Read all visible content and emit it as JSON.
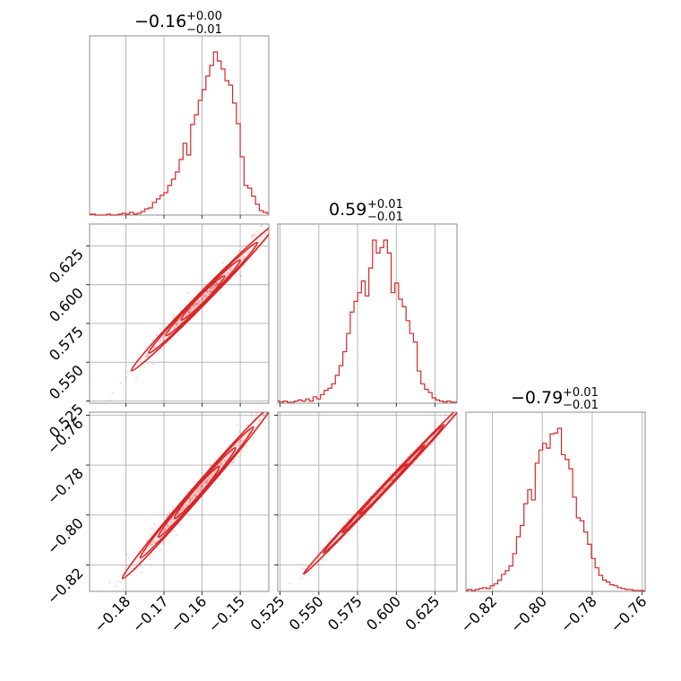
{
  "chart_data": {
    "type": "corner",
    "color": "#d62728",
    "parameters": [
      {
        "title": "−0.16",
        "plus": "+0.00",
        "minus": "−0.01",
        "lim": [
          -0.1895,
          -0.1425
        ],
        "ticks": [
          -0.18,
          -0.17,
          -0.16,
          -0.15
        ],
        "tick_labels": [
          "−0.18",
          "−0.17",
          "−0.16",
          "−0.15"
        ]
      },
      {
        "title": "0.59",
        "plus": "+0.01",
        "minus": "−0.01",
        "lim": [
          0.5235,
          0.6392
        ],
        "ticks": [
          0.525,
          0.55,
          0.575,
          0.6,
          0.625
        ],
        "tick_labels": [
          "0.525",
          "0.550",
          "0.575",
          "0.600",
          "0.625"
        ]
      },
      {
        "title": "−0.79",
        "plus": "+0.01",
        "minus": "−0.01",
        "lim": [
          -0.8306,
          -0.7588
        ],
        "ticks": [
          -0.82,
          -0.8,
          -0.78,
          -0.76
        ],
        "tick_labels": [
          "−0.82",
          "−0.80",
          "−0.78",
          "−0.76"
        ]
      }
    ],
    "histograms": [
      {
        "x": [
          -0.1895,
          -0.1885,
          -0.1875,
          -0.1865,
          -0.1855,
          -0.1845,
          -0.1835,
          -0.1825,
          -0.1815,
          -0.1805,
          -0.1795,
          -0.1785,
          -0.1775,
          -0.1765,
          -0.1755,
          -0.1745,
          -0.1735,
          -0.1725,
          -0.1715,
          -0.1705,
          -0.1695,
          -0.1685,
          -0.1675,
          -0.1665,
          -0.1655,
          -0.1645,
          -0.1635,
          -0.1625,
          -0.1615,
          -0.1605,
          -0.1595,
          -0.1585,
          -0.1575,
          -0.1565,
          -0.1555,
          -0.1545,
          -0.1535,
          -0.1525,
          -0.1515,
          -0.1505,
          -0.1495,
          -0.1485,
          -0.1475,
          -0.1465,
          -0.1455,
          -0.1445,
          -0.1435,
          -0.1425
        ],
        "counts": [
          1,
          1,
          0,
          0,
          0,
          1,
          0,
          0,
          1,
          2,
          1,
          3,
          1,
          2,
          4,
          7,
          8,
          14,
          18,
          22,
          25,
          33,
          40,
          48,
          62,
          80,
          67,
          101,
          112,
          128,
          140,
          155,
          167,
          182,
          172,
          163,
          150,
          145,
          125,
          102,
          65,
          33,
          30,
          21,
          12,
          5,
          3,
          2
        ]
      },
      {
        "x": [
          0.5235,
          0.5259,
          0.5283,
          0.5307,
          0.5331,
          0.5355,
          0.5379,
          0.5403,
          0.5427,
          0.5451,
          0.5475,
          0.5499,
          0.5523,
          0.5547,
          0.5571,
          0.5595,
          0.5619,
          0.5643,
          0.5667,
          0.5691,
          0.5715,
          0.5739,
          0.5763,
          0.5787,
          0.5811,
          0.5835,
          0.5859,
          0.5883,
          0.5907,
          0.5931,
          0.5955,
          0.5979,
          0.6003,
          0.6027,
          0.6051,
          0.6075,
          0.6099,
          0.6123,
          0.6147,
          0.6171,
          0.6195,
          0.6219,
          0.6243,
          0.6267,
          0.6291,
          0.6315,
          0.6339,
          0.6363,
          0.6387
        ],
        "counts": [
          2,
          1,
          2,
          1,
          1,
          2,
          3,
          2,
          4,
          2,
          6,
          4,
          8,
          12,
          14,
          18,
          26,
          35,
          48,
          65,
          85,
          95,
          103,
          114,
          100,
          126,
          152,
          140,
          145,
          152,
          140,
          103,
          112,
          97,
          90,
          77,
          65,
          57,
          30,
          18,
          13,
          10,
          5,
          3,
          2,
          1,
          2,
          1,
          1
        ]
      },
      {
        "x": [
          -0.8306,
          -0.8291,
          -0.8276,
          -0.8261,
          -0.8246,
          -0.8231,
          -0.8216,
          -0.8201,
          -0.8186,
          -0.8171,
          -0.8156,
          -0.8141,
          -0.8126,
          -0.8111,
          -0.8096,
          -0.8081,
          -0.8066,
          -0.8051,
          -0.8036,
          -0.8021,
          -0.8006,
          -0.7991,
          -0.7976,
          -0.7961,
          -0.7946,
          -0.7931,
          -0.7916,
          -0.7901,
          -0.7886,
          -0.7871,
          -0.7856,
          -0.7841,
          -0.7826,
          -0.7811,
          -0.7796,
          -0.7781,
          -0.7766,
          -0.7751,
          -0.7736,
          -0.7721,
          -0.7706,
          -0.7691,
          -0.7676,
          -0.7661,
          -0.7646,
          -0.7631,
          -0.7616,
          -0.7601,
          -0.7586
        ],
        "counts": [
          1,
          2,
          1,
          2,
          3,
          4,
          3,
          6,
          8,
          12,
          18,
          22,
          27,
          40,
          58,
          70,
          93,
          108,
          97,
          136,
          150,
          157,
          152,
          167,
          168,
          173,
          145,
          140,
          130,
          100,
          78,
          75,
          63,
          50,
          35,
          25,
          17,
          12,
          10,
          7,
          6,
          4,
          3,
          2,
          2,
          1,
          1,
          1,
          0
        ]
      }
    ],
    "correlations": [
      {
        "panel": "0-1",
        "points": [
          [
            -0.1815,
            0.537
          ],
          [
            -0.178,
            0.545
          ],
          [
            -0.175,
            0.552
          ],
          [
            -0.171,
            0.561
          ],
          [
            -0.167,
            0.571
          ],
          [
            -0.163,
            0.58
          ],
          [
            -0.159,
            0.589
          ],
          [
            -0.155,
            0.598
          ],
          [
            -0.151,
            0.608
          ],
          [
            -0.147,
            0.618
          ],
          [
            -0.144,
            0.631
          ]
        ]
      },
      {
        "panel": "0-2",
        "points": [
          [
            -0.184,
            -0.831
          ],
          [
            -0.179,
            -0.824
          ],
          [
            -0.175,
            -0.818
          ],
          [
            -0.171,
            -0.811
          ],
          [
            -0.166,
            -0.803
          ],
          [
            -0.162,
            -0.796
          ],
          [
            -0.158,
            -0.789
          ],
          [
            -0.154,
            -0.781
          ],
          [
            -0.151,
            -0.775
          ],
          [
            -0.148,
            -0.768
          ],
          [
            -0.145,
            -0.762
          ]
        ]
      },
      {
        "panel": "1-2",
        "points": [
          [
            0.532,
            -0.829
          ],
          [
            0.545,
            -0.822
          ],
          [
            0.555,
            -0.816
          ],
          [
            0.565,
            -0.809
          ],
          [
            0.575,
            -0.802
          ],
          [
            0.585,
            -0.794
          ],
          [
            0.595,
            -0.787
          ],
          [
            0.605,
            -0.78
          ],
          [
            0.615,
            -0.773
          ],
          [
            0.625,
            -0.766
          ],
          [
            0.635,
            -0.761
          ]
        ]
      }
    ]
  }
}
